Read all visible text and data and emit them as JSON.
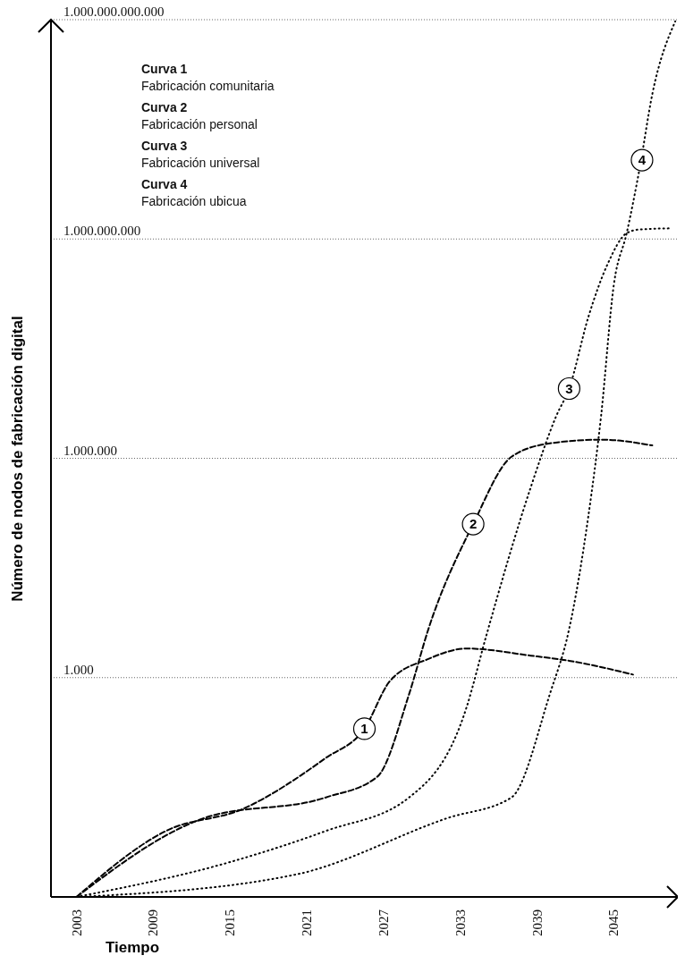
{
  "chart_data": {
    "type": "line",
    "xlabel": "Tiempo",
    "ylabel": "Número de nodos de fabricación digital",
    "xlim": [
      2001,
      2050
    ],
    "xticks": [
      2003,
      2009,
      2015,
      2021,
      2027,
      2033,
      2039,
      2045
    ],
    "log": "y",
    "ylim": [
      1,
      1000000000000
    ],
    "yticks": [
      {
        "value": 1000,
        "label": "1.000"
      },
      {
        "value": 1000000,
        "label": "1.000.000"
      },
      {
        "value": 1000000000,
        "label": "1.000.000.000"
      },
      {
        "value": 1000000000000,
        "label": "1.000.000.000.000"
      }
    ],
    "grid": "y",
    "series": [
      {
        "color": "#000000",
        "line_style": "dashed",
        "x": [
          2003,
          2010,
          2016,
          2022.5,
          2025.5,
          2027.5,
          2030.5,
          2033.5,
          2038.5,
          2041.5,
          2046.5
        ],
        "values": [
          1,
          8,
          16,
          80,
          200,
          900,
          1800,
          2500,
          2000,
          1700,
          1100
        ]
      },
      {
        "color": "#000000",
        "line_style": "dashed",
        "x": [
          2003,
          2013,
          2022.5,
          2026.5,
          2029,
          2030.5,
          2034,
          2037,
          2040,
          2044,
          2048
        ],
        "values": [
          1,
          12,
          23,
          44,
          600,
          4600,
          126000,
          1050000,
          1600000,
          1800000,
          1500000
        ]
      },
      {
        "color": "#000000",
        "line_style": "dotted",
        "x": [
          2003,
          2015,
          2022.5,
          2029,
          2033.5,
          2035,
          2038.5,
          2040.5,
          2041.5,
          2043,
          2044.5,
          2046,
          2047,
          2049.5
        ],
        "values": [
          1,
          3,
          8,
          23,
          400,
          3600,
          400000,
          3800000,
          9000000,
          85000000,
          450000000,
          1200000000,
          1350000000,
          1400000000
        ]
      },
      {
        "color": "#000000",
        "line_style": "dotted",
        "x": [
          2003,
          2020,
          2032,
          2037,
          2040,
          2041.5,
          2043,
          2044,
          2045,
          2046,
          2047,
          2048,
          2049.8
        ],
        "values": [
          1,
          2,
          12,
          23,
          600,
          4600,
          160000,
          3800000,
          240000000,
          1200000000,
          9000000000,
          95000000000,
          950000000000
        ]
      }
    ],
    "annotations": [
      "Curva 1",
      "Fabricación comunitaria",
      "Curva 2",
      "Fabricación personal",
      "Curva 3",
      "Fabricación universal",
      "Curva 4",
      "Fabricación ubicua",
      {
        "text": "1",
        "x": 2025.5,
        "y": 200
      },
      {
        "text": "2",
        "x": 2034,
        "y": 126000
      },
      {
        "text": "3",
        "x": 2041.5,
        "y": 9000000
      },
      {
        "text": "4",
        "x": 2047.2,
        "y": 12000000000
      }
    ]
  }
}
